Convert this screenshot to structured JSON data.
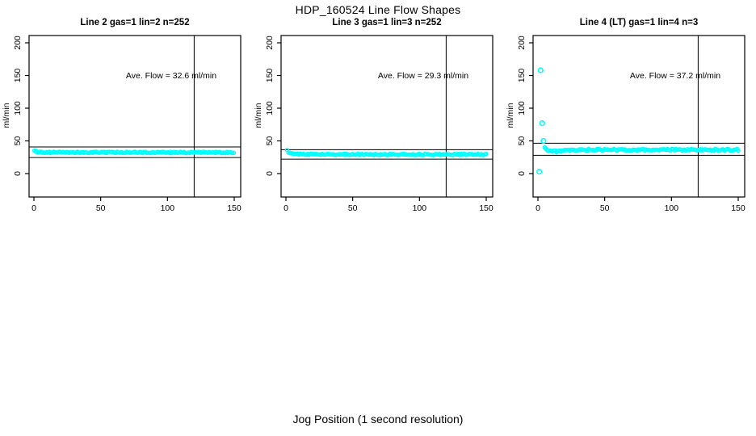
{
  "title": "HDP_160524  Line Flow Shapes",
  "xlabel": "Jog Position (1 second resolution)",
  "ylabel": "ml/min",
  "colors": {
    "points": "#00FFFF",
    "axis": "#000000",
    "background": "#FFFFFF"
  },
  "chart_data": [
    {
      "type": "scatter",
      "title": "Line 2 gas=1 lin=2 n=252",
      "ave_flow": 32.6,
      "ave_flow_label": "Ave. Flow =  32.6  ml/min",
      "n": 252,
      "xlim": [
        0,
        150
      ],
      "ylim": [
        0,
        200
      ],
      "x_ticks": [
        0,
        50,
        100,
        150
      ],
      "y_ticks": [
        0,
        50,
        100,
        150,
        200
      ],
      "grid": false,
      "ref_line_upper": 40.8,
      "ref_line_lower": 24.5,
      "ref_line_vertical_x": 120,
      "profile": [
        [
          0.5,
          35
        ],
        [
          2,
          33.5
        ],
        [
          6,
          32.5
        ],
        [
          150,
          32.3
        ]
      ],
      "outliers": [],
      "jitter": 0.9,
      "seed": 1
    },
    {
      "type": "scatter",
      "title": "Line 3 gas=1 lin=3 n=252",
      "ave_flow": 29.3,
      "ave_flow_label": "Ave. Flow =  29.3  ml/min",
      "n": 252,
      "xlim": [
        0,
        150
      ],
      "ylim": [
        0,
        200
      ],
      "x_ticks": [
        0,
        50,
        100,
        150
      ],
      "y_ticks": [
        0,
        50,
        100,
        150,
        200
      ],
      "grid": false,
      "ref_line_upper": 36.6,
      "ref_line_lower": 22.0,
      "ref_line_vertical_x": 120,
      "profile": [
        [
          1,
          36
        ],
        [
          2,
          31.5
        ],
        [
          6,
          30
        ],
        [
          30,
          29.4
        ],
        [
          150,
          29.2
        ]
      ],
      "outliers": [],
      "jitter": 0.9,
      "seed": 2
    },
    {
      "type": "scatter",
      "title": "Line 4 (LT) gas=1 lin=4 n=3",
      "ave_flow": 37.2,
      "ave_flow_label": "Ave. Flow =  37.2  ml/min",
      "n": 3,
      "xlim": [
        0,
        150
      ],
      "ylim": [
        0,
        200
      ],
      "x_ticks": [
        0,
        50,
        100,
        150
      ],
      "y_ticks": [
        0,
        50,
        100,
        150,
        200
      ],
      "grid": false,
      "ref_line_upper": 46.5,
      "ref_line_lower": 27.9,
      "ref_line_vertical_x": 120,
      "profile": [
        [
          5,
          41
        ],
        [
          6,
          38
        ],
        [
          8,
          35
        ],
        [
          12,
          34
        ],
        [
          20,
          35
        ],
        [
          35,
          36.3
        ],
        [
          150,
          36.4
        ]
      ],
      "outliers": [
        [
          1,
          3
        ],
        [
          2,
          158
        ],
        [
          3.2,
          77
        ],
        [
          4.2,
          50
        ]
      ],
      "jitter": 1.3,
      "seed": 3
    }
  ]
}
